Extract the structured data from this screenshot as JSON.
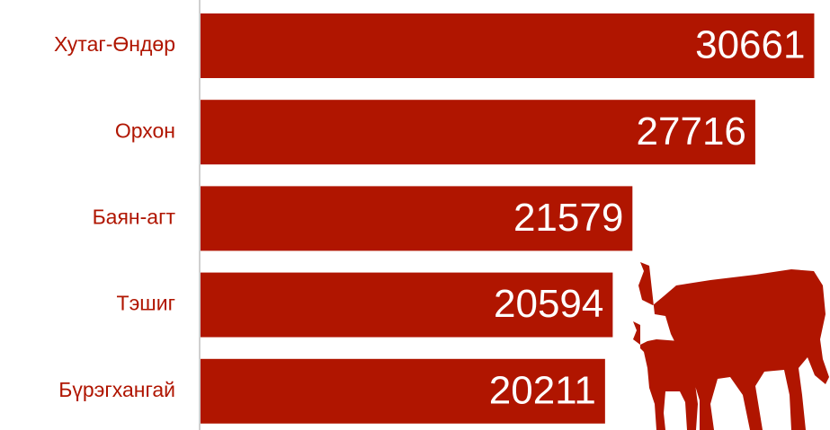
{
  "chart_data": {
    "type": "bar",
    "orientation": "horizontal",
    "categories": [
      "Хутаг-Өндөр",
      "Орхон",
      "Баян-агт",
      "Тэшиг",
      "Бүрэгхангай"
    ],
    "values": [
      30661,
      27716,
      21579,
      20594,
      20211
    ],
    "color": "#b01500",
    "xlim": [
      0,
      31000
    ]
  }
}
